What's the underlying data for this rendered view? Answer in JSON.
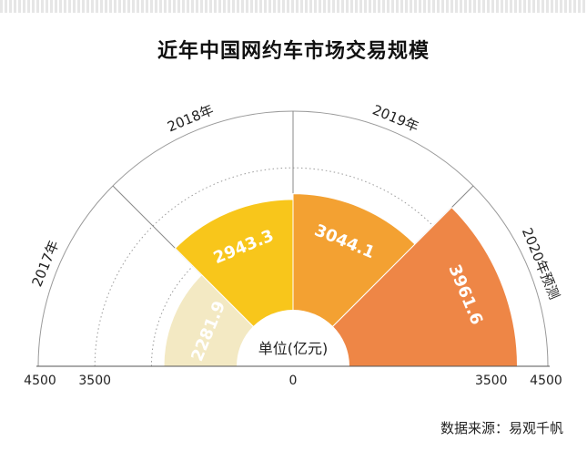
{
  "title": "近年中国网约车市场交易规模",
  "source": "数据来源：易观千帆",
  "chart_data": {
    "type": "polar-bar",
    "unit_label": "单位(亿元)",
    "categories": [
      "2017年",
      "2018年",
      "2019年",
      "2020年预测"
    ],
    "values": [
      2281.9,
      2943.3,
      3044.1,
      3961.6
    ],
    "value_labels": [
      "2281.9",
      "2943.3",
      "3044.1",
      "3961.6"
    ],
    "colors": [
      "#f3e9c3",
      "#f8c61b",
      "#f3a132",
      "#ee8646"
    ],
    "rmax": 4500,
    "axis_ticks": [
      {
        "value": 4500,
        "label": "4500"
      },
      {
        "value": 3500,
        "label": "3500"
      },
      {
        "value": 0,
        "label": "0"
      },
      {
        "value": 3500,
        "label": "3500"
      },
      {
        "value": 4500,
        "label": "4500"
      }
    ],
    "grid_values": [
      2500,
      3500
    ]
  }
}
